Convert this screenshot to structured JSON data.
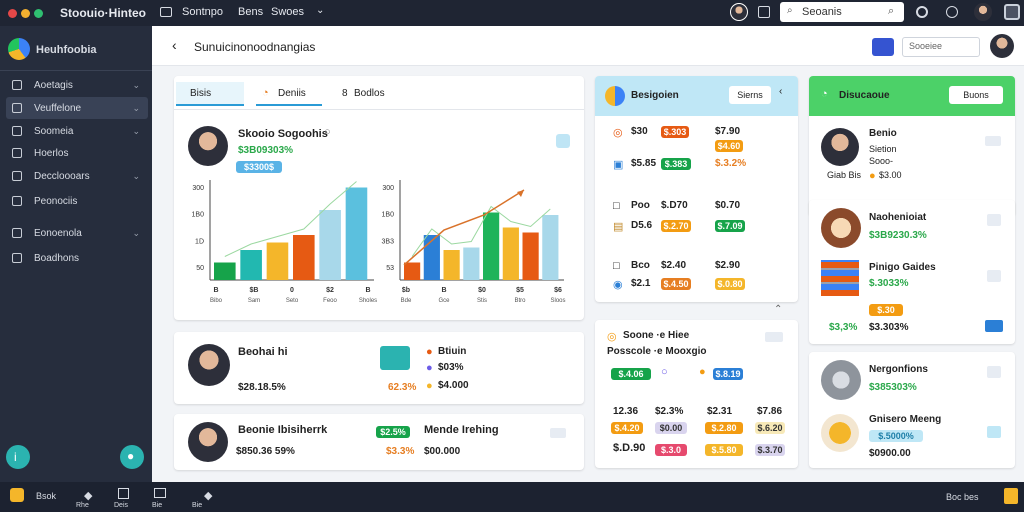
{
  "app": {
    "title": "Stoouio·Hinteo"
  },
  "topbar": {
    "menus": [
      "Sontnpo",
      "Bens",
      "Swoes"
    ],
    "search_placeholder": "Seoanis"
  },
  "sidebar": {
    "brand": "Heuhfoobia",
    "items": [
      {
        "label": "Aoetagis"
      },
      {
        "label": "Veuffelone"
      },
      {
        "label": "Soomeia"
      },
      {
        "label": "Hoerlos"
      },
      {
        "label": "Deccloooars"
      },
      {
        "label": "Peonociis"
      },
      {
        "label": "Eonoenola"
      },
      {
        "label": "Boadhons"
      }
    ]
  },
  "header": {
    "back": "‹",
    "title": "Sunuicinonoodnangias",
    "filter_placeholder": "Sooeiee"
  },
  "main_card": {
    "tabs": [
      "Bisis",
      "Deniis",
      "Bodlos"
    ],
    "person_name": "Skooio Sogoohis",
    "person_value": "$3B09303%",
    "badge": "$3300$",
    "chart_left": {
      "y_ticks": [
        "300",
        "1B0",
        "1D",
        "50"
      ],
      "x_ticks": [
        "B",
        "$B",
        "0",
        "$2",
        "B"
      ],
      "x_sublabels": [
        "Bibo",
        "Sam",
        "Seto",
        "Feoo",
        "Sholes"
      ]
    },
    "chart_right": {
      "y_ticks": [
        "300",
        "1B0",
        "3B3",
        "53"
      ],
      "x_ticks": [
        "$b",
        "B",
        "$0",
        "$5",
        "$6"
      ],
      "x_sublabels": [
        "Bde",
        "Gce",
        "Stis",
        "Btro",
        "Sloos"
      ]
    }
  },
  "chart_data": [
    {
      "type": "bar",
      "categories": [
        "1",
        "2",
        "3",
        "4",
        "5",
        "6"
      ],
      "values": [
        35,
        60,
        75,
        90,
        140,
        185
      ],
      "colors": [
        "#16a34a",
        "#22b8b0",
        "#f4b62a",
        "#e65a13",
        "#a8d8ea",
        "#5bc0de"
      ],
      "trend": true
    },
    {
      "type": "bar",
      "categories": [
        "1",
        "2",
        "3",
        "4",
        "5",
        "6",
        "7",
        "8"
      ],
      "values": [
        35,
        90,
        60,
        65,
        135,
        105,
        95,
        130
      ],
      "colors": [
        "#e65a13",
        "#2b7fd6",
        "#f4b62a",
        "#a8d8ea",
        "#1fb35a",
        "#f4b62a",
        "#e65a13",
        "#a8d8ea"
      ],
      "trend": true
    }
  ],
  "profile_card1": {
    "name": "Beohai hi",
    "value": "$28.18.5%",
    "stat1": "Btiuin",
    "stat2": "$03%",
    "stat3": "$4.000",
    "pct": "62.3%"
  },
  "profile_card2": {
    "name": "Beonie Ibisiherrk",
    "value": "$850.36 59%",
    "tag": "$2.5%",
    "badge": "Mende Irehing",
    "pct": "$3.3%",
    "sub": "$00.000"
  },
  "right_card1": {
    "title": "Besigoien",
    "button": "Sierns",
    "rows": [
      {
        "a": "$30",
        "b": "$.303",
        "c": "$7.90",
        "d": "$4.60"
      },
      {
        "a": "$5.85",
        "b": "$.383",
        "c": "$.3.2%"
      },
      {
        "a": "Poo",
        "b": "$.D70",
        "c": "$0.70"
      },
      {
        "a": "D5.6",
        "b": "$.2.70",
        "c": "$.7.09"
      },
      {
        "a": "Bco",
        "b": "$2.40",
        "c": "$2.90"
      },
      {
        "a": "$2.1",
        "b": "$.4.50",
        "c": "$.0.80"
      }
    ]
  },
  "right_card2": {
    "header": "Soone ·e Hiee",
    "sub": "Posscole ·e Mooxgio",
    "pill1": "$.4.06",
    "pill2": "$.8.19",
    "cols": [
      "12.36",
      "$2.3%",
      "$2.31",
      "$7.86"
    ],
    "pills": [
      "$.4.20",
      "$0.00",
      "$.2.80",
      "$.6.20"
    ],
    "big": "$.D.90",
    "pills2": [
      "$.3.0",
      "$.5.80",
      "$.3.70"
    ]
  },
  "far_card1": {
    "title": "Disucaoue",
    "button": "Buons",
    "name": "Benio",
    "line1": "Sietion",
    "line2": "Sooo-",
    "line3": "Giab Bis",
    "pct": "$3.00"
  },
  "far_card2": {
    "name": "Naohenioiat",
    "value": "$3B9230.3%",
    "name2": "Pinigo Gaides",
    "pct2": "$.3033%",
    "pill": "$.30",
    "v1": "$3,3%",
    "v2": "$3.303%"
  },
  "far_card3": {
    "name": "Nergonfions",
    "value": "$385303%",
    "name2": "Gnisero Meeng",
    "tag": "$.5000%",
    "sub": "$0900.00"
  },
  "bottombar": {
    "items": [
      "Bsok",
      "Rhe",
      "Deis",
      "Bie",
      "Bie"
    ],
    "right": "Boc bes"
  }
}
